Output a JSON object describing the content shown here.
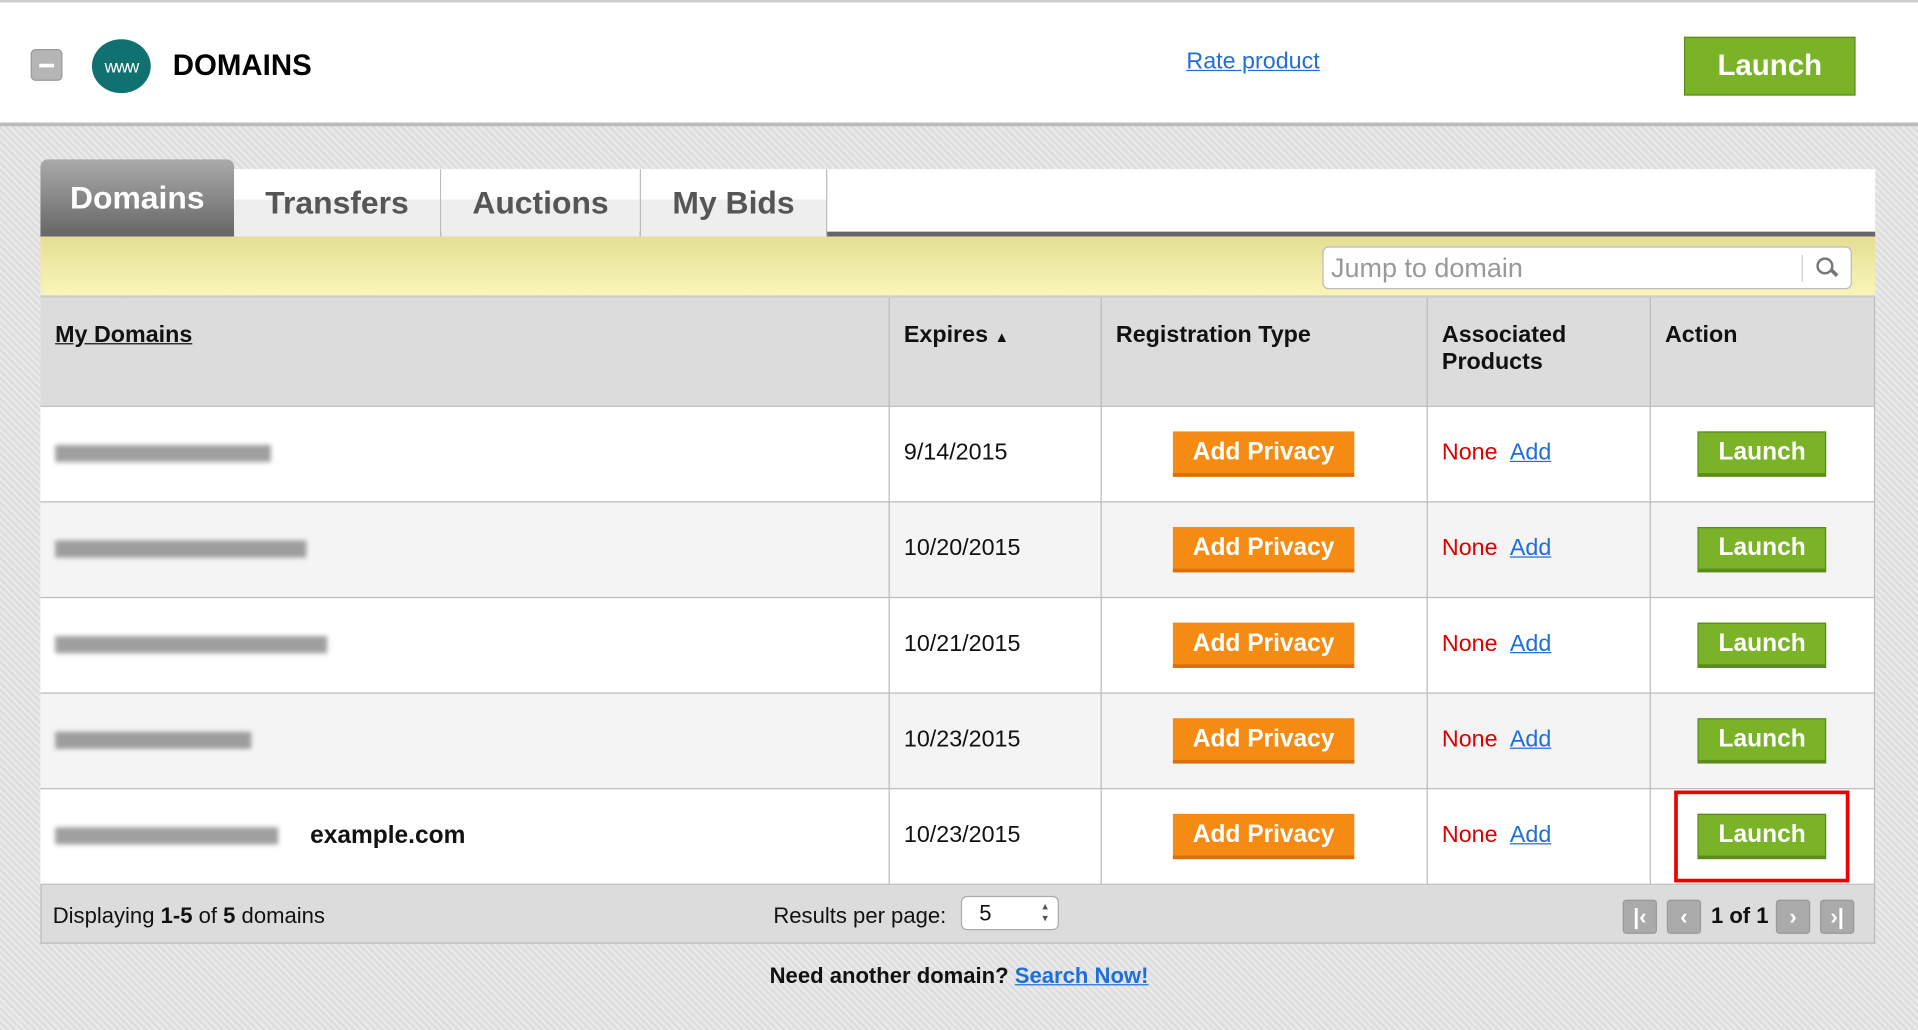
{
  "header": {
    "title": "DOMAINS",
    "logo_text": "www",
    "rate_link": "Rate product",
    "launch_label": "Launch"
  },
  "tabs": [
    {
      "label": "Domains",
      "active": true
    },
    {
      "label": "Transfers"
    },
    {
      "label": "Auctions"
    },
    {
      "label": "My Bids"
    }
  ],
  "search": {
    "placeholder": "Jump to domain",
    "value": ""
  },
  "table": {
    "headers": {
      "domain": "My Domains",
      "expires": "Expires",
      "expires_sort": "▲",
      "reg_type": "Registration Type",
      "assoc": "Associated Products",
      "action": "Action"
    },
    "rows": [
      {
        "expires": "9/14/2015",
        "privacy": "Add Privacy",
        "assoc": "None",
        "add": "Add",
        "launch": "Launch"
      },
      {
        "expires": "10/20/2015",
        "privacy": "Add Privacy",
        "assoc": "None",
        "add": "Add",
        "launch": "Launch"
      },
      {
        "expires": "10/21/2015",
        "privacy": "Add Privacy",
        "assoc": "None",
        "add": "Add",
        "launch": "Launch"
      },
      {
        "expires": "10/23/2015",
        "privacy": "Add Privacy",
        "assoc": "None",
        "add": "Add",
        "launch": "Launch"
      },
      {
        "expires": "10/23/2015",
        "privacy": "Add Privacy",
        "assoc": "None",
        "add": "Add",
        "launch": "Launch",
        "annotation": "example.com"
      }
    ]
  },
  "footer": {
    "displaying_prefix": "Displaying ",
    "range": "1-5",
    "of": " of ",
    "total": "5",
    "suffix": " domains",
    "results_label": "Results per page:",
    "per_page": "5",
    "page_text": "1 of 1"
  },
  "bottom": {
    "text": "Need another domain?",
    "link": "Search Now!"
  },
  "colors": {
    "launch_green": "#7ab328",
    "privacy_orange": "#f68b14",
    "none_red": "#dd0000",
    "link_blue": "#1f6fd8",
    "highlight": "#ee0000"
  }
}
